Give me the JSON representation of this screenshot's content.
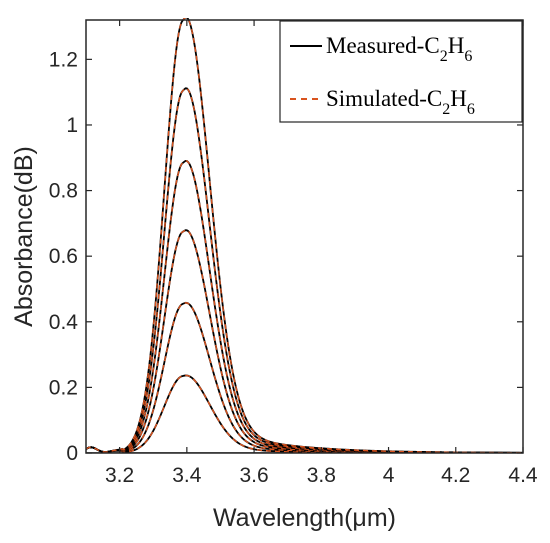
{
  "chart_data": {
    "type": "line",
    "xlabel": "Wavelength(μm)",
    "ylabel": "Absorbance(dB)",
    "xlim": [
      3.1,
      4.4
    ],
    "ylim": [
      0,
      1.32
    ],
    "x_ticks": [
      3.2,
      3.4,
      3.6,
      3.8,
      4,
      4.2,
      4.4
    ],
    "x_tick_labels": [
      "3.2",
      "3.4",
      "3.6",
      "3.8",
      "4",
      "4.2",
      "4.4"
    ],
    "y_ticks": [
      0,
      0.2,
      0.4,
      0.6,
      0.8,
      1,
      1.2
    ],
    "y_tick_labels": [
      "0",
      "0.2",
      "0.4",
      "0.6",
      "0.8",
      "1",
      "1.2"
    ],
    "grid": false,
    "legend_position": "top-right",
    "peak_wavelength": 3.39,
    "shoulder_start": 3.1,
    "series": [
      {
        "name": "Measured-C2H6",
        "color": "#000000",
        "style": "solid",
        "legend_text": "Measured-C",
        "legend_sub1": "2",
        "legend_mid": "H",
        "legend_sub2": "6"
      },
      {
        "name": "Simulated-C2H6",
        "color": "#d9531e",
        "style": "dashed",
        "legend_text": "Simulated-C",
        "legend_sub1": "2",
        "legend_mid": "H",
        "legend_sub2": "6"
      }
    ],
    "peak_absorbance": [
      0.235,
      0.455,
      0.675,
      0.885,
      1.105,
      1.32
    ]
  }
}
